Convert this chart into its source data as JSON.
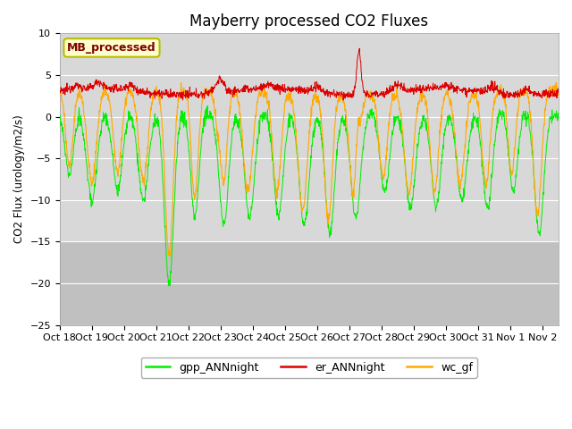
{
  "title": "Mayberry processed CO2 Fluxes",
  "ylabel": "CO2 Flux (urology/m2/s)",
  "ylim": [
    -25,
    10
  ],
  "yticks": [
    -25,
    -20,
    -15,
    -10,
    -5,
    0,
    5,
    10
  ],
  "background_color": "#ffffff",
  "plot_bg_upper": "#d8d8d8",
  "plot_bg_lower": "#c0c0c0",
  "legend_label": "MB_processed",
  "legend_text_color": "#800000",
  "legend_bg_color": "#ffffcc",
  "legend_edge_color": "#bbbb00",
  "line_colors": {
    "gpp": "#00ee00",
    "er": "#dd0000",
    "wc": "#ffaa00"
  },
  "tick_label_fontsize": 8,
  "title_fontsize": 12,
  "x_labels": [
    "Oct 18",
    "Oct 19",
    "Oct 20",
    "Oct 21",
    "Oct 22",
    "Oct 23",
    "Oct 24",
    "Oct 25",
    "Oct 26",
    "Oct 27",
    "Oct 28",
    "Oct 29",
    "Oct 30",
    "Oct 31",
    "Nov 1",
    "Nov 2"
  ]
}
